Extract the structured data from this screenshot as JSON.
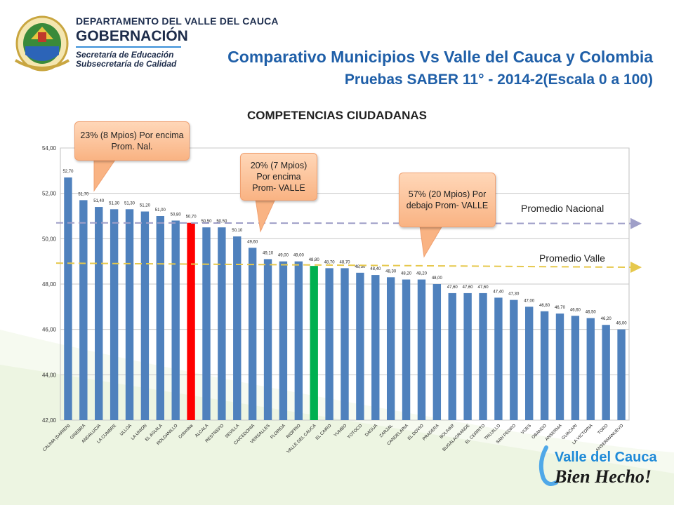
{
  "header": {
    "department": "DEPARTAMENTO DEL VALLE DEL CAUCA",
    "government": "GOBERNACIÓN",
    "secretariat": "Secretaría de Educación",
    "subsecretariat": "Subsecretaría de Calidad",
    "title_line1": "Comparativo Municipios Vs Valle del Cauca y Colombia",
    "title_line2": "Pruebas SABER 11° - 2014-2(Escala 0 a 100)"
  },
  "callouts": {
    "above_national": "23% (8 Mpios) Por encima Prom. Nal.",
    "above_valle": "20% (7 Mpios) Por encima Prom- VALLE",
    "below_valle": "57% (20 Mpios) Por debajo Prom- VALLE"
  },
  "reference_labels": {
    "national": "Promedio Nacional",
    "valle": "Promedio Valle"
  },
  "brand": {
    "line1": "Valle del Cauca",
    "line2": "Bien Hecho!"
  },
  "colors": {
    "bar_default": "#4f81bd",
    "bar_highlight_red": "#ff0000",
    "bar_highlight_green": "#00b050",
    "national_line": "#9f9fc8",
    "valle_line": "#e6c84c",
    "title_blue": "#1f5fa8"
  },
  "chart_data": {
    "type": "bar",
    "title": "COMPETENCIAS CIUDADANAS",
    "xlabel": "",
    "ylabel": "",
    "ylim": [
      42,
      54
    ],
    "yticks": [
      "42,00",
      "44,00",
      "46,00",
      "48,00",
      "50,00",
      "52,00",
      "54,00"
    ],
    "categories": [
      "CALIMA (DARIEN)",
      "GINEBRA",
      "ANDALUCIA",
      "LA CUMBRE",
      "ULLOA",
      "LA UNION",
      "EL AGUILA",
      "ROLDANILLO",
      "Colombia",
      "ALCALA",
      "RESTREPO",
      "SEVILLA",
      "CAICEDONIA",
      "VERSALLES",
      "FLORIDA",
      "RIOFRIO",
      "VALLE DEL CAUCA",
      "EL CAIRO",
      "YUMBO",
      "YOTOCO",
      "DAGUA",
      "ZARZAL",
      "CANDELARIA",
      "EL DOVIO",
      "PRADERA",
      "BOLIVAR",
      "BUGALAGRANDE",
      "EL CERRITO",
      "TRUJILLO",
      "SAN PEDRO",
      "VIJES",
      "OBANDO",
      "ANSERMA",
      "GUACARI",
      "LA VICTORIA",
      "TORO",
      "ANSERMANUEVO"
    ],
    "values": [
      52.7,
      51.7,
      51.4,
      51.3,
      51.3,
      51.2,
      51.0,
      50.8,
      50.7,
      50.5,
      50.5,
      50.1,
      49.6,
      49.1,
      49.0,
      49.0,
      48.8,
      48.7,
      48.7,
      48.5,
      48.4,
      48.3,
      48.2,
      48.2,
      48.0,
      47.6,
      47.6,
      47.6,
      47.4,
      47.3,
      47.0,
      46.8,
      46.7,
      46.6,
      46.5,
      46.2,
      46.0
    ],
    "labels": [
      "52,70",
      "51,70",
      "51,40",
      "51,30",
      "51,30",
      "51,20",
      "51,00",
      "50,80",
      "50,70",
      "50,50",
      "50,50",
      "50,10",
      "49,60",
      "49,10",
      "49,00",
      "49,00",
      "48,80",
      "48,70",
      "48,70",
      "48,50",
      "48,40",
      "48,30",
      "48,20",
      "48,20",
      "48,00",
      "47,60",
      "47,60",
      "47,60",
      "47,40",
      "47,30",
      "47,00",
      "46,80",
      "46,70",
      "46,60",
      "46,50",
      "46,20",
      "46,00"
    ],
    "highlight_red": "Colombia",
    "highlight_green": "VALLE DEL CAUCA",
    "reference_lines": [
      {
        "name": "Promedio Nacional",
        "value": 50.7
      },
      {
        "name": "Promedio Valle",
        "value": 48.8
      }
    ],
    "grid": true
  }
}
